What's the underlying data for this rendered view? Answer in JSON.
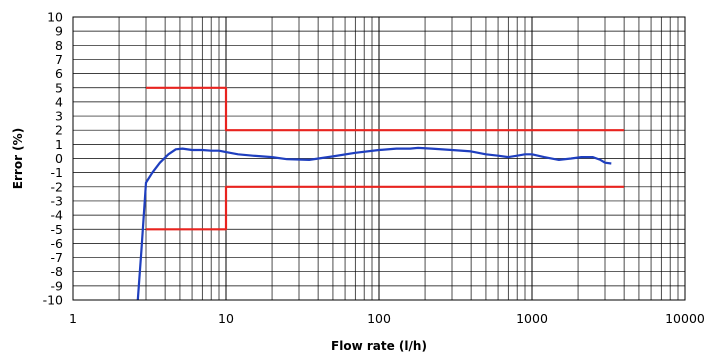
{
  "chart_data": {
    "type": "line",
    "title": "",
    "xlabel": "Flow rate (l/h)",
    "ylabel": "Error (%)",
    "xscale": "log",
    "xlim": [
      1,
      10000
    ],
    "ylim": [
      -10,
      10
    ],
    "grid": "on (log-minor on x, every 1 on y)",
    "x_ticks": [
      "1",
      "10",
      "100",
      "1000",
      "10000"
    ],
    "y_ticks": [
      "10",
      "9",
      "8",
      "7",
      "6",
      "5",
      "4",
      "3",
      "2",
      "1",
      "0",
      "-1",
      "-2",
      "-3",
      "-4",
      "-5",
      "-6",
      "-7",
      "-8",
      "-9",
      "-10"
    ],
    "colors": {
      "error_curve": "#1f3fbf",
      "limits": "#e8231f",
      "grid": "#000000"
    },
    "series": [
      {
        "kind": "measured-error",
        "x": [
          2.65,
          2.8,
          3.0,
          3.3,
          3.7,
          4.2,
          4.7,
          5.2,
          6.0,
          7.0,
          8.0,
          9.0,
          10,
          12,
          15,
          20,
          25,
          35,
          50,
          70,
          100,
          130,
          160,
          180,
          220,
          300,
          400,
          500,
          600,
          700,
          800,
          900,
          1000,
          1200,
          1500,
          1800,
          2100,
          2500,
          2800,
          3000,
          3300
        ],
        "y": [
          -10,
          -6.5,
          -1.7,
          -1.0,
          -0.3,
          0.3,
          0.65,
          0.7,
          0.6,
          0.6,
          0.55,
          0.55,
          0.45,
          0.3,
          0.2,
          0.1,
          -0.05,
          -0.1,
          0.15,
          0.4,
          0.6,
          0.7,
          0.7,
          0.75,
          0.7,
          0.6,
          0.5,
          0.3,
          0.2,
          0.1,
          0.2,
          0.3,
          0.3,
          0.1,
          -0.1,
          0.0,
          0.1,
          0.1,
          -0.1,
          -0.3,
          -0.35
        ]
      },
      {
        "kind": "upper-limit",
        "x": [
          3,
          10,
          10,
          4000
        ],
        "y": [
          5,
          5,
          2,
          2
        ]
      },
      {
        "kind": "lower-limit",
        "x": [
          3,
          10,
          10,
          4000
        ],
        "y": [
          -5,
          -5,
          -2,
          -2
        ]
      }
    ]
  }
}
